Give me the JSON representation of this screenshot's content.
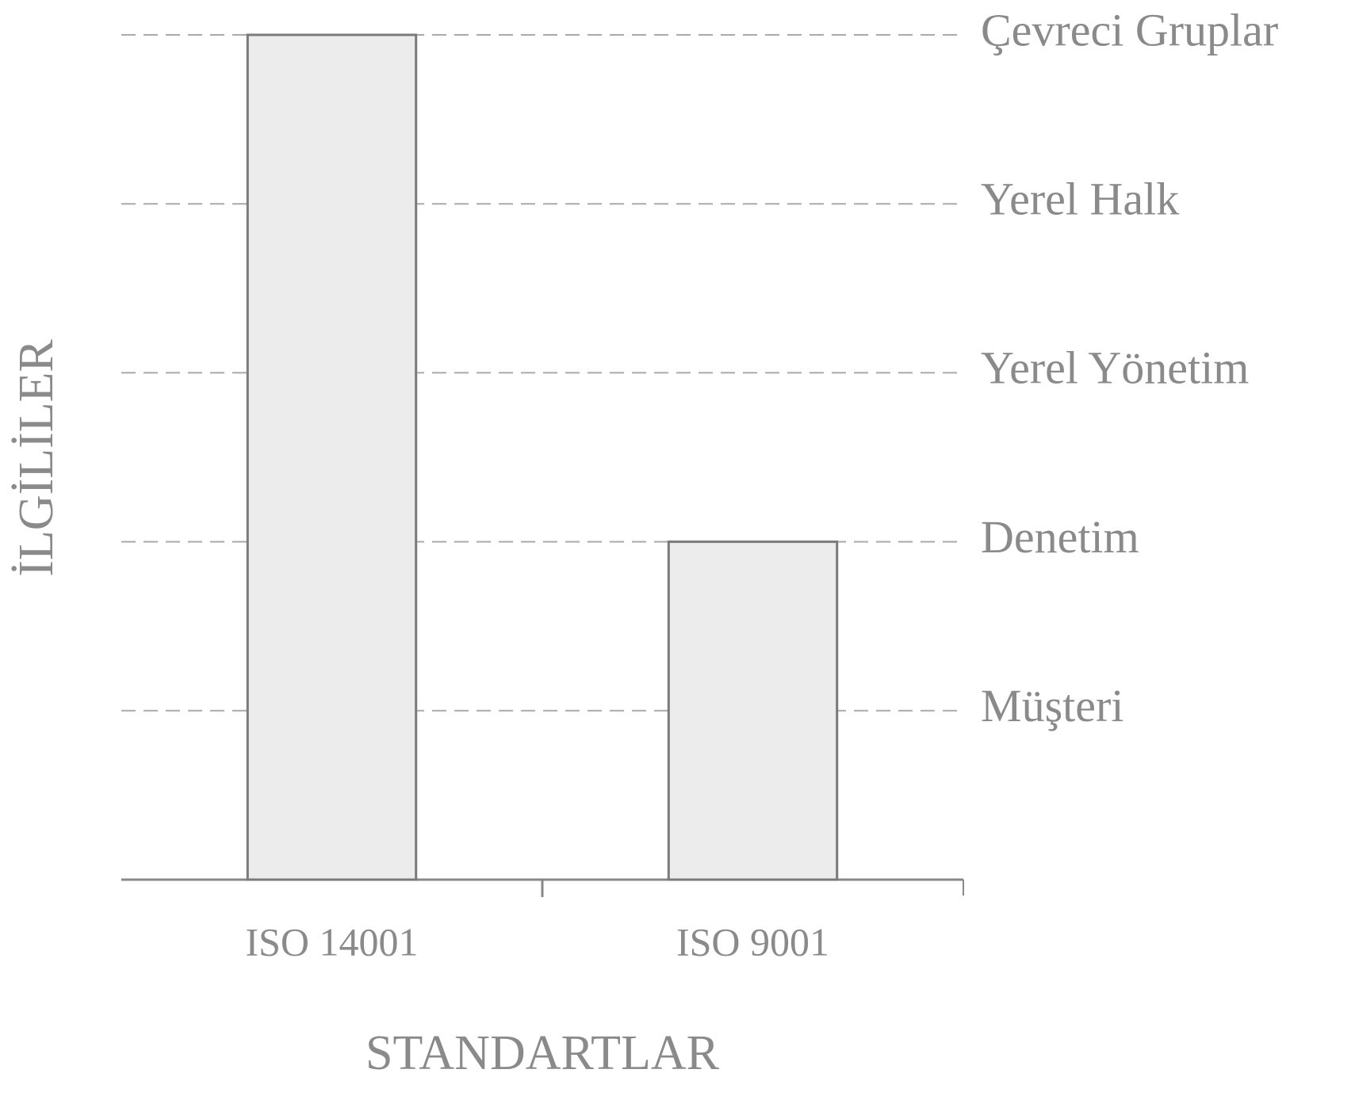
{
  "chart_data": {
    "type": "bar",
    "categories": [
      "ISO 14001",
      "ISO 9001"
    ],
    "values": [
      5,
      2
    ],
    "color": "#ececec",
    "x_label": "STANDARTLAR",
    "y_label": "İLGİLİLER",
    "ylim": [
      0,
      5
    ],
    "yticks": [
      {
        "value": 1,
        "label": "Müşteri"
      },
      {
        "value": 2,
        "label": "Denetim"
      },
      {
        "value": 3,
        "label": "Yerel Yönetim"
      },
      {
        "value": 4,
        "label": "Yerel Halk"
      },
      {
        "value": 5,
        "label": "Çevreci Gruplar"
      }
    ],
    "grid": true
  }
}
